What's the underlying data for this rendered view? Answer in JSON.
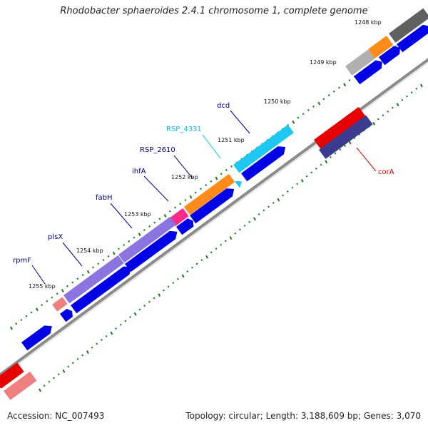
{
  "title": "Rhodobacter sphaeroides 2.4.1 chromosome 1, complete genome",
  "accession": "Accession: NC_007493",
  "topology_info": "Topology: circular; Length: 3,188,609 bp; Genes: 3,070",
  "ticks": [
    {
      "label": "1248 kbp"
    },
    {
      "label": "1249 kbp"
    },
    {
      "label": "1250 kbp"
    },
    {
      "label": "1251 kbp"
    },
    {
      "label": "1252 kbp"
    },
    {
      "label": "1253 kbp"
    },
    {
      "label": "1254 kbp"
    },
    {
      "label": "1255 kbp"
    }
  ],
  "gene_labels": [
    {
      "name": "dcd",
      "color": "#00008b"
    },
    {
      "name": "RSP_4331",
      "color": "#00bfff"
    },
    {
      "name": "RSP_2610",
      "color": "#00008b"
    },
    {
      "name": "ihfA",
      "color": "#00008b"
    },
    {
      "name": "fabH",
      "color": "#00008b"
    },
    {
      "name": "plsX",
      "color": "#00008b"
    },
    {
      "name": "rpmF",
      "color": "#00008b"
    },
    {
      "name": "corA",
      "color": "#d40000"
    }
  ],
  "colors": {
    "backbone": "#8a8a8a",
    "cds": "#0000e6",
    "tick": "#1e7a1e",
    "gene_purple": "#8b74e0",
    "gene_orange": "#ff8c1a",
    "gene_pink": "#ff2a8a",
    "gene_cyan": "#1ec8f0",
    "gene_salmon": "#f08080",
    "gene_gray": "#b0b0b0",
    "gene_darkgray": "#606060",
    "gene_red": "#e60000",
    "gene_navy": "#3b3b8f"
  }
}
